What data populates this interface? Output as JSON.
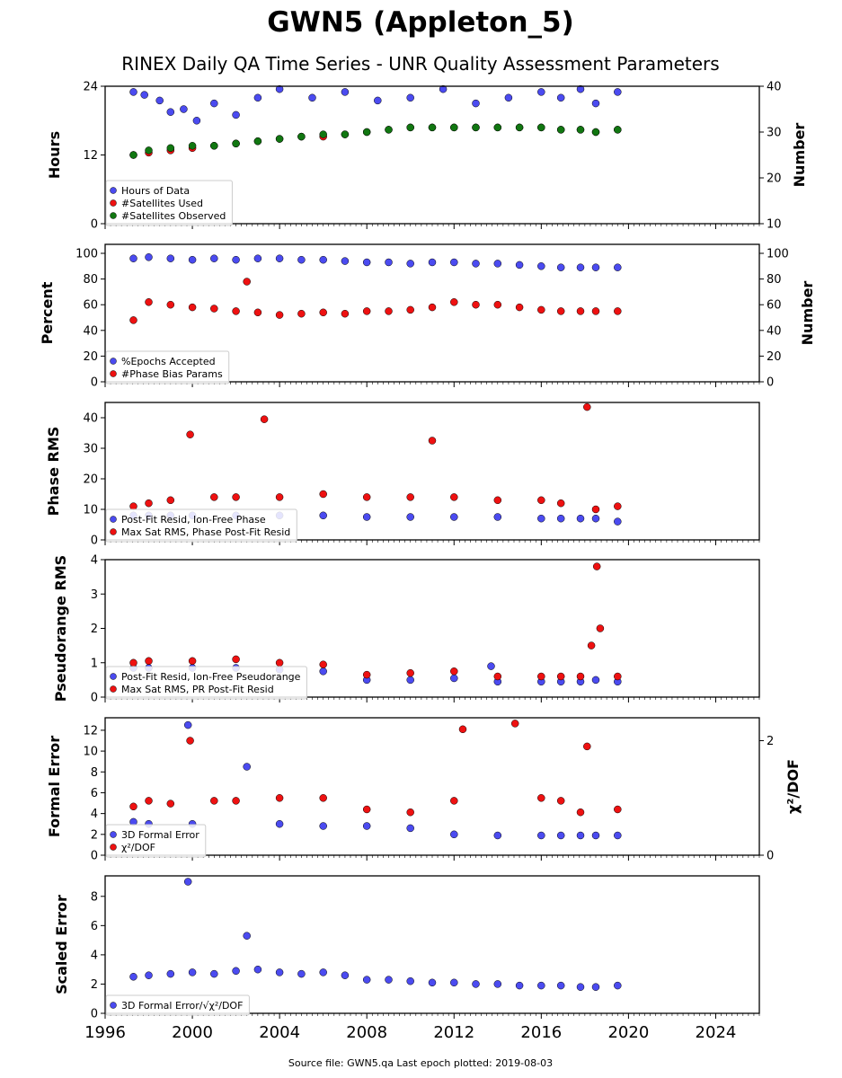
{
  "title": "GWN5 (Appleton_5)",
  "subtitle": "RINEX Daily QA Time Series - UNR Quality Assessment Parameters",
  "footer": "Source file: GWN5.qa Last epoch plotted: 2019-08-03",
  "chart_data": [
    {
      "type": "scatter",
      "ylabel": "Hours",
      "y2label": "Number",
      "xlim": [
        1996,
        2026
      ],
      "ylim": [
        0,
        24
      ],
      "y2lim": [
        10,
        40
      ],
      "yticks": [
        "0",
        "12",
        "24"
      ],
      "y2ticks": [
        "10",
        "20",
        "30",
        "40"
      ],
      "legend": "lower-left",
      "series": [
        {
          "name": "Hours of Data",
          "color": "#4b4bf0",
          "axis": "left",
          "x": [
            1997.3,
            1997.8,
            1998.5,
            1999.0,
            1999.6,
            2000.2,
            2001.0,
            2002.0,
            2003.0,
            2004.0,
            2005.5,
            2007.0,
            2008.5,
            2010.0,
            2011.5,
            2013.0,
            2014.5,
            2016.0,
            2016.9,
            2017.8,
            2018.5,
            2019.5
          ],
          "y": [
            23.0,
            22.5,
            21.5,
            19.5,
            20.0,
            18.0,
            21.0,
            19.0,
            22.0,
            23.5,
            22.0,
            23.0,
            21.5,
            22.0,
            23.5,
            21.0,
            22.0,
            23.0,
            22.0,
            23.5,
            21.0,
            23.0
          ]
        },
        {
          "name": "#Satellites Used",
          "color": "#ee1111",
          "axis": "right",
          "x": [
            1997.3,
            1998.0,
            1999.0,
            2000.0,
            2001.0,
            2002.0,
            2003.0,
            2004.0,
            2005.0,
            2006.0,
            2007.0,
            2008.0,
            2009.0,
            2010.0,
            2011.0,
            2012.0,
            2013.0,
            2014.0,
            2015.0,
            2016.0,
            2016.9,
            2017.8,
            2018.5,
            2019.5
          ],
          "y": [
            25,
            25.5,
            26,
            26.5,
            27,
            27.5,
            28,
            28.5,
            29,
            29,
            29.5,
            30,
            30.5,
            31,
            31,
            31,
            31,
            31,
            31,
            31,
            30.5,
            30.5,
            30,
            30.5
          ]
        },
        {
          "name": "#Satellites Observed",
          "color": "#117711",
          "axis": "right",
          "x": [
            1997.3,
            1998.0,
            1999.0,
            2000.0,
            2001.0,
            2002.0,
            2003.0,
            2004.0,
            2005.0,
            2006.0,
            2007.0,
            2008.0,
            2009.0,
            2010.0,
            2011.0,
            2012.0,
            2013.0,
            2014.0,
            2015.0,
            2016.0,
            2016.9,
            2017.8,
            2018.5,
            2019.5
          ],
          "y": [
            25,
            26,
            26.5,
            27,
            27,
            27.5,
            28,
            28.5,
            29,
            29.5,
            29.5,
            30,
            30.5,
            31,
            31,
            31,
            31,
            31,
            31,
            31,
            30.5,
            30.5,
            30,
            30.5
          ]
        }
      ]
    },
    {
      "type": "scatter",
      "ylabel": "Percent",
      "y2label": "Number",
      "xlim": [
        1996,
        2026
      ],
      "ylim": [
        0,
        107
      ],
      "y2lim": [
        0,
        107
      ],
      "yticks": [
        "0",
        "20",
        "40",
        "60",
        "80",
        "100"
      ],
      "y2ticks": [
        "0",
        "20",
        "40",
        "60",
        "80",
        "100"
      ],
      "legend": "lower-left",
      "series": [
        {
          "name": "%Epochs Accepted",
          "color": "#4b4bf0",
          "axis": "left",
          "x": [
            1997.3,
            1998.0,
            1999.0,
            2000.0,
            2001.0,
            2002.0,
            2003.0,
            2004.0,
            2005.0,
            2006.0,
            2007.0,
            2008.0,
            2009.0,
            2010.0,
            2011.0,
            2012.0,
            2013.0,
            2014.0,
            2015.0,
            2016.0,
            2016.9,
            2017.8,
            2018.5,
            2019.5
          ],
          "y": [
            96,
            97,
            96,
            95,
            96,
            95,
            96,
            96,
            95,
            95,
            94,
            93,
            93,
            92,
            93,
            93,
            92,
            92,
            91,
            90,
            89,
            89,
            89,
            89
          ]
        },
        {
          "name": "#Phase Bias Params",
          "color": "#ee1111",
          "axis": "right",
          "x": [
            1997.3,
            1998.0,
            1999.0,
            2000.0,
            2001.0,
            2002.0,
            2002.5,
            2003.0,
            2004.0,
            2005.0,
            2006.0,
            2007.0,
            2008.0,
            2009.0,
            2010.0,
            2011.0,
            2012.0,
            2013.0,
            2014.0,
            2015.0,
            2016.0,
            2016.9,
            2017.8,
            2018.5,
            2019.5
          ],
          "y": [
            48,
            62,
            60,
            58,
            57,
            55,
            78,
            54,
            52,
            53,
            54,
            53,
            55,
            55,
            56,
            58,
            62,
            60,
            60,
            58,
            56,
            55,
            55,
            55,
            55
          ]
        }
      ]
    },
    {
      "type": "scatter",
      "ylabel": "Phase RMS",
      "xlim": [
        1996,
        2026
      ],
      "ylim": [
        0,
        45
      ],
      "yticks": [
        "0",
        "10",
        "20",
        "30",
        "40"
      ],
      "legend": "lower-left",
      "series": [
        {
          "name": "Post-Fit Resid, Ion-Free Phase",
          "color": "#4b4bf0",
          "axis": "left",
          "x": [
            1997.3,
            1998.0,
            1999.0,
            2000.0,
            2002.0,
            2004.0,
            2006.0,
            2008.0,
            2010.0,
            2012.0,
            2014.0,
            2016.0,
            2016.9,
            2017.8,
            2018.5,
            2019.5
          ],
          "y": [
            8,
            8,
            8,
            8,
            8,
            8,
            8,
            7.5,
            7.5,
            7.5,
            7.5,
            7,
            7,
            7,
            7,
            6
          ]
        },
        {
          "name": "Max Sat RMS, Phase Post-Fit Resid",
          "color": "#ee1111",
          "axis": "left",
          "x": [
            1997.3,
            1998.0,
            1999.0,
            1999.9,
            2001.0,
            2002.0,
            2003.3,
            2004.0,
            2006.0,
            2008.0,
            2010.0,
            2011.0,
            2012.0,
            2014.0,
            2016.0,
            2016.9,
            2018.1,
            2018.5,
            2019.5
          ],
          "y": [
            11,
            12,
            13,
            34.5,
            14,
            14,
            39.5,
            14,
            15,
            14,
            14,
            32.5,
            14,
            13,
            13,
            12,
            43.5,
            10,
            11
          ]
        }
      ]
    },
    {
      "type": "scatter",
      "ylabel": "Pseudorange RMS",
      "xlim": [
        1996,
        2026
      ],
      "ylim": [
        0,
        4
      ],
      "yticks": [
        "0",
        "1",
        "2",
        "3",
        "4"
      ],
      "legend": "lower-left",
      "series": [
        {
          "name": "Post-Fit Resid, Ion-Free Pseudorange",
          "color": "#4b4bf0",
          "axis": "left",
          "x": [
            1997.3,
            1998.0,
            2000.0,
            2002.0,
            2004.0,
            2006.0,
            2008.0,
            2010.0,
            2012.0,
            2013.7,
            2014.0,
            2016.0,
            2016.9,
            2017.8,
            2018.5,
            2019.5
          ],
          "y": [
            0.85,
            0.85,
            0.85,
            0.85,
            0.8,
            0.75,
            0.5,
            0.5,
            0.55,
            0.9,
            0.45,
            0.45,
            0.45,
            0.45,
            0.5,
            0.45
          ]
        },
        {
          "name": "Max Sat RMS, PR Post-Fit Resid",
          "color": "#ee1111",
          "axis": "left",
          "x": [
            1997.3,
            1998.0,
            2000.0,
            2002.0,
            2004.0,
            2006.0,
            2008.0,
            2010.0,
            2012.0,
            2014.0,
            2016.0,
            2016.9,
            2017.8,
            2018.3,
            2018.55,
            2018.7,
            2019.5
          ],
          "y": [
            1.0,
            1.05,
            1.05,
            1.1,
            1.0,
            0.95,
            0.65,
            0.7,
            0.75,
            0.6,
            0.6,
            0.6,
            0.6,
            1.5,
            3.8,
            2.0,
            0.6
          ]
        }
      ]
    },
    {
      "type": "scatter",
      "ylabel": "Formal Error",
      "y2label": "χ²/DOF",
      "xlim": [
        1996,
        2026
      ],
      "ylim": [
        0,
        13.2
      ],
      "y2lim": [
        0,
        2.4
      ],
      "yticks": [
        "0",
        "2",
        "4",
        "6",
        "8",
        "10",
        "12"
      ],
      "y2ticks": [
        "0",
        "2"
      ],
      "legend": "lower-left",
      "series": [
        {
          "name": "3D Formal Error",
          "color": "#4b4bf0",
          "axis": "left",
          "x": [
            1997.3,
            1998.0,
            1999.8,
            2000.0,
            2002.5,
            2004.0,
            2006.0,
            2008.0,
            2010.0,
            2012.0,
            2014.0,
            2016.0,
            2016.9,
            2017.8,
            2018.5,
            2019.5
          ],
          "y": [
            3.2,
            3.0,
            12.5,
            3.0,
            8.5,
            3.0,
            2.8,
            2.8,
            2.6,
            2.0,
            1.9,
            1.9,
            1.9,
            1.9,
            1.9,
            1.9
          ]
        },
        {
          "name": "χ²/DOF",
          "color": "#ee1111",
          "axis": "right",
          "x": [
            1997.3,
            1998.0,
            1999.0,
            1999.9,
            2001.0,
            2002.0,
            2004.0,
            2006.0,
            2008.0,
            2010.0,
            2012.0,
            2012.4,
            2014.8,
            2016.0,
            2016.9,
            2017.8,
            2018.1,
            2019.5
          ],
          "y": [
            0.85,
            0.95,
            0.9,
            2.0,
            0.95,
            0.95,
            1.0,
            1.0,
            0.8,
            0.75,
            0.95,
            2.2,
            2.3,
            1.0,
            0.95,
            0.75,
            1.9,
            0.8
          ]
        }
      ]
    },
    {
      "type": "scatter",
      "ylabel": "Scaled Error",
      "xlim": [
        1996,
        2026
      ],
      "ylim": [
        0,
        9.4
      ],
      "yticks": [
        "0",
        "2",
        "4",
        "6",
        "8"
      ],
      "xticks": [
        "1996",
        "2000",
        "2004",
        "2008",
        "2012",
        "2016",
        "2020",
        "2024"
      ],
      "legend": "lower-left",
      "series": [
        {
          "name": "3D Formal Error/√χ²/DOF",
          "color": "#4b4bf0",
          "axis": "left",
          "x": [
            1997.3,
            1998.0,
            1999.0,
            1999.8,
            2000.0,
            2001.0,
            2002.0,
            2002.5,
            2003.0,
            2004.0,
            2005.0,
            2006.0,
            2007.0,
            2008.0,
            2009.0,
            2010.0,
            2011.0,
            2012.0,
            2013.0,
            2014.0,
            2015.0,
            2016.0,
            2016.9,
            2017.8,
            2018.5,
            2019.5
          ],
          "y": [
            2.5,
            2.6,
            2.7,
            9.0,
            2.8,
            2.7,
            2.9,
            5.3,
            3.0,
            2.8,
            2.7,
            2.8,
            2.6,
            2.3,
            2.3,
            2.2,
            2.1,
            2.1,
            2.0,
            2.0,
            1.9,
            1.9,
            1.9,
            1.8,
            1.8,
            1.9
          ]
        }
      ]
    }
  ]
}
